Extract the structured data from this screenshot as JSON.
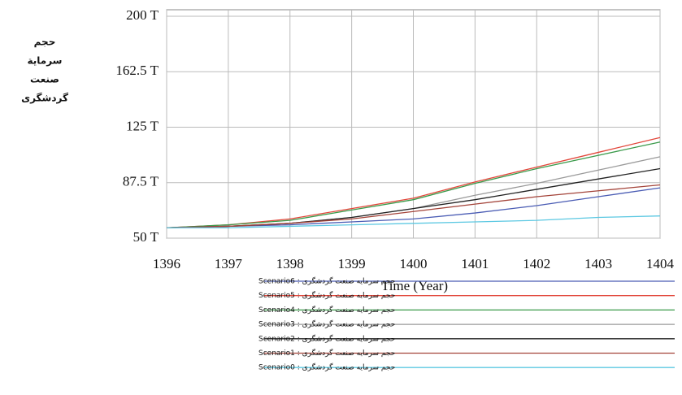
{
  "chart_data": {
    "type": "line",
    "y_label_lines": [
      "حجم",
      "سرمایة",
      "صنعت",
      "گردشگری"
    ],
    "x_label": "Time (Year)",
    "x": [
      1396,
      1397,
      1398,
      1399,
      1400,
      1401,
      1402,
      1403,
      1404
    ],
    "xlim": [
      1396,
      1404
    ],
    "xticks": [
      1396,
      1397,
      1398,
      1399,
      1400,
      1401,
      1402,
      1403,
      1404
    ],
    "ylim": [
      50,
      200
    ],
    "yticks": [
      {
        "value": 50,
        "label": "50 T"
      },
      {
        "value": 87.5,
        "label": "87.5 T"
      },
      {
        "value": 125,
        "label": "125 T"
      },
      {
        "value": 162.5,
        "label": "162.5 T"
      },
      {
        "value": 200,
        "label": "200 T"
      }
    ],
    "grid": true,
    "series": [
      {
        "name": "حجم سرمایه صنعت گردشگری : Scenario6",
        "color": "#4a5cb4",
        "values": [
          57,
          58,
          59,
          61,
          63,
          67,
          72,
          78,
          84
        ]
      },
      {
        "name": "حجم سرمایه صنعت گردشگری : Scenario5",
        "color": "#e2463a",
        "values": [
          57,
          59,
          63,
          70,
          77,
          88,
          98,
          108,
          118
        ]
      },
      {
        "name": "حجم سرمایه صنعت گردشگری : Scenario4",
        "color": "#3a9a4a",
        "values": [
          57,
          59,
          62,
          69,
          76,
          87,
          97,
          106,
          115
        ]
      },
      {
        "name": "حجم سرمایه صنعت گردشگری : Scenario3",
        "color": "#9a9a9a",
        "values": [
          57,
          58,
          60,
          64,
          70,
          79,
          87,
          96,
          105
        ]
      },
      {
        "name": "حجم سرمایه صنعت گردشگری : Scenario2",
        "color": "#222222",
        "values": [
          57,
          58,
          60,
          64,
          70,
          76,
          83,
          90,
          97
        ]
      },
      {
        "name": "حجم سرمایه صنعت گردشگری : Scenario1",
        "color": "#a4443a",
        "values": [
          57,
          58,
          60,
          63,
          68,
          73,
          78,
          82,
          86
        ]
      },
      {
        "name": "حجم سرمایه صنعت گردشگری : Scenario0",
        "color": "#5cc8e2",
        "values": [
          57,
          57,
          58,
          59,
          60,
          61,
          62,
          64,
          65
        ]
      }
    ]
  }
}
